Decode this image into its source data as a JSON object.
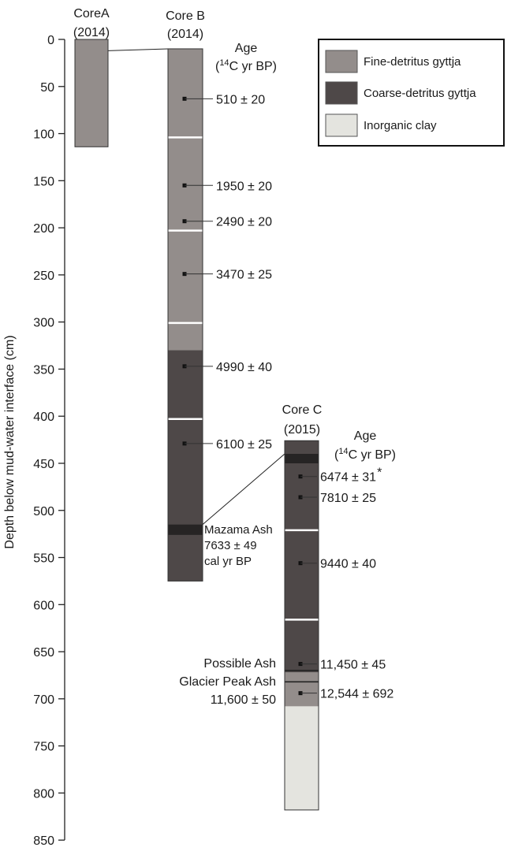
{
  "axis": {
    "label": "Depth below mud-water interface (cm)",
    "min": 0,
    "max": 850,
    "ticks": [
      0,
      50,
      100,
      150,
      200,
      250,
      300,
      350,
      400,
      450,
      500,
      550,
      600,
      650,
      700,
      750,
      800,
      850
    ]
  },
  "colors": {
    "fine": "#938d8b",
    "coarse": "#4e4848",
    "clay": "#e4e4df",
    "ash": "#262424",
    "gap": "#ffffff",
    "outline": "#333333"
  },
  "legend": {
    "items": [
      {
        "key": "fine",
        "label": "Fine-detritus gyttja"
      },
      {
        "key": "coarse",
        "label": "Coarse-detritus gyttja"
      },
      {
        "key": "clay",
        "label": "Inorganic clay"
      }
    ]
  },
  "cores": [
    {
      "id": "a",
      "title": "CoreA",
      "year": "(2014)",
      "top_depth": 0,
      "bottom_depth": 114,
      "units": [
        {
          "type": "fine",
          "from": 0,
          "to": 114
        }
      ],
      "gaps": [],
      "ash": [],
      "dates": []
    },
    {
      "id": "b",
      "title": "Core B",
      "year": "(2014)",
      "age_heading": "Age",
      "age_unit": [
        "14",
        "C yr BP)"
      ],
      "top_depth": 10,
      "bottom_depth": 575,
      "units": [
        {
          "type": "fine",
          "from": 10,
          "to": 330
        },
        {
          "type": "coarse",
          "from": 330,
          "to": 575
        }
      ],
      "gaps": [
        104,
        203,
        301,
        403
      ],
      "ash": [
        {
          "from": 515,
          "to": 526
        }
      ],
      "dates": [
        {
          "depth": 63,
          "label": "510 ± 20"
        },
        {
          "depth": 155,
          "label": "1950 ± 20"
        },
        {
          "depth": 193,
          "label": "2490 ± 20"
        },
        {
          "depth": 249,
          "label": "3470 ± 25"
        },
        {
          "depth": 347,
          "label": "4990 ± 40"
        },
        {
          "depth": 429,
          "label": "6100 ± 25"
        }
      ],
      "mazama": [
        "Mazama Ash",
        "7633 ± 49",
        "cal yr BP"
      ]
    },
    {
      "id": "c",
      "title": "Core C",
      "year": "(2015)",
      "age_heading": "Age",
      "age_unit": [
        "14",
        "C yr BP)"
      ],
      "top_depth": 426,
      "bottom_depth": 818,
      "units": [
        {
          "type": "coarse",
          "from": 426,
          "to": 672
        },
        {
          "type": "fine",
          "from": 672,
          "to": 708
        },
        {
          "type": "clay",
          "from": 708,
          "to": 818
        }
      ],
      "gaps": [
        521,
        616
      ],
      "ash": [
        {
          "from": 440,
          "to": 450
        }
      ],
      "lines": [
        670,
        682
      ],
      "dates": [
        {
          "depth": 464,
          "label": "6474 ± 31",
          "star": "*"
        },
        {
          "depth": 486,
          "label": "7810 ± 25"
        },
        {
          "depth": 556,
          "label": "9440 ± 40"
        },
        {
          "depth": 663,
          "label": "11,450 ± 45"
        },
        {
          "depth": 694,
          "label": "12,544 ± 692"
        }
      ],
      "ash_notes": [
        "Possible Ash",
        "Glacier Peak Ash",
        "11,600 ± 50"
      ]
    }
  ]
}
